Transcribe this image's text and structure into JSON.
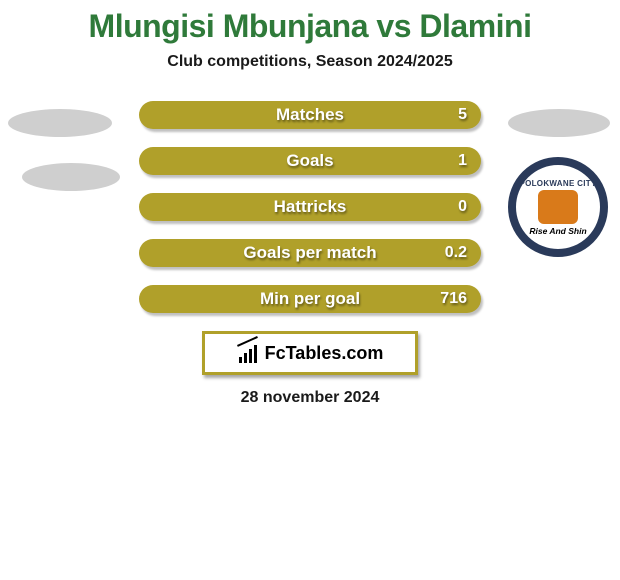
{
  "title": {
    "text": "Mlungisi Mbunjana vs Dlamini",
    "color": "#2f7a3a",
    "fontsize": 32
  },
  "subtitle": {
    "text": "Club competitions, Season 2024/2025",
    "color": "#1a1a1a",
    "fontsize": 16
  },
  "stats": {
    "bar_bg_color": "#b0a02a",
    "bar_label_color": "#ffffff",
    "bar_value_color": "#ffffff",
    "bar_label_fontsize": 17,
    "bar_value_fontsize": 16,
    "rows": [
      {
        "label": "Matches",
        "left": null,
        "right": "5"
      },
      {
        "label": "Goals",
        "left": null,
        "right": "1"
      },
      {
        "label": "Hattricks",
        "left": null,
        "right": "0"
      },
      {
        "label": "Goals per match",
        "left": null,
        "right": "0.2"
      },
      {
        "label": "Min per goal",
        "left": null,
        "right": "716"
      }
    ]
  },
  "logo": {
    "top_text": "POLOKWANE   CITY",
    "bottom_text": "Rise And Shin",
    "ring_color": "#2a3a5a",
    "center_color": "#d97a1a"
  },
  "footer": {
    "bg_color": "#b0a02a",
    "border_color": "#b0a02a",
    "inner_bg": "#ffffff",
    "brand_text": "FcTables.com",
    "brand_fontsize": 18
  },
  "date": {
    "text": "28 november 2024",
    "color": "#1a1a1a",
    "fontsize": 16
  },
  "background": "#ffffff"
}
